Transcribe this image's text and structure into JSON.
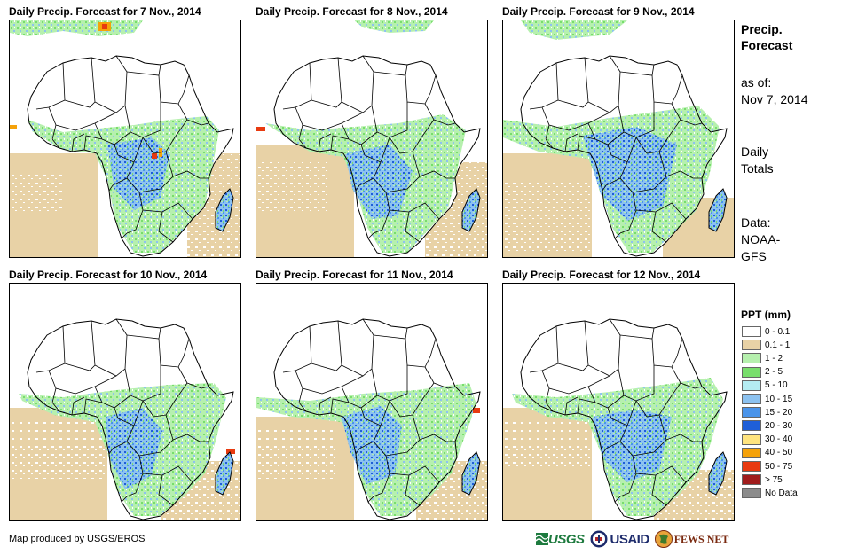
{
  "panels": [
    {
      "title": "Daily Precip. Forecast for 7 Nov., 2014"
    },
    {
      "title": "Daily Precip. Forecast for 8 Nov., 2014"
    },
    {
      "title": "Daily Precip. Forecast for 9 Nov., 2014"
    },
    {
      "title": "Daily Precip. Forecast for 10 Nov., 2014"
    },
    {
      "title": "Daily Precip. Forecast for 11 Nov., 2014"
    },
    {
      "title": "Daily Precip. Forecast for 12 Nov., 2014"
    }
  ],
  "sidebar": {
    "title_line1": "Precip.",
    "title_line2": "Forecast",
    "asof_label": "as of:",
    "asof_date": "Nov 7, 2014",
    "totals_line1": "Daily",
    "totals_line2": "Totals",
    "data_line1": "Data:",
    "data_line2": "NOAA-",
    "data_line3": "GFS"
  },
  "legend": {
    "title": "PPT (mm)",
    "items": [
      {
        "label": "0 - 0.1",
        "color": "#ffffff"
      },
      {
        "label": "0.1 - 1",
        "color": "#e8d2a6"
      },
      {
        "label": "1 - 2",
        "color": "#b6f0ae"
      },
      {
        "label": "2 - 5",
        "color": "#78de6c"
      },
      {
        "label": "5 - 10",
        "color": "#b4ecf2"
      },
      {
        "label": "10 - 15",
        "color": "#8cc2f0"
      },
      {
        "label": "15 - 20",
        "color": "#4a94ea"
      },
      {
        "label": "20 - 30",
        "color": "#1f5fd8"
      },
      {
        "label": "30 - 40",
        "color": "#ffe47e"
      },
      {
        "label": "40 - 50",
        "color": "#f5a20a"
      },
      {
        "label": "50 - 75",
        "color": "#e83a10"
      },
      {
        "label": "> 75",
        "color": "#a01c1c"
      },
      {
        "label": "No Data",
        "color": "#8c8c8c"
      }
    ]
  },
  "footer": {
    "credit": "Map produced by USGS/EROS",
    "logo_usgs": "USGS",
    "logo_usaid": "USAID",
    "logo_fews": "FEWS NET"
  }
}
